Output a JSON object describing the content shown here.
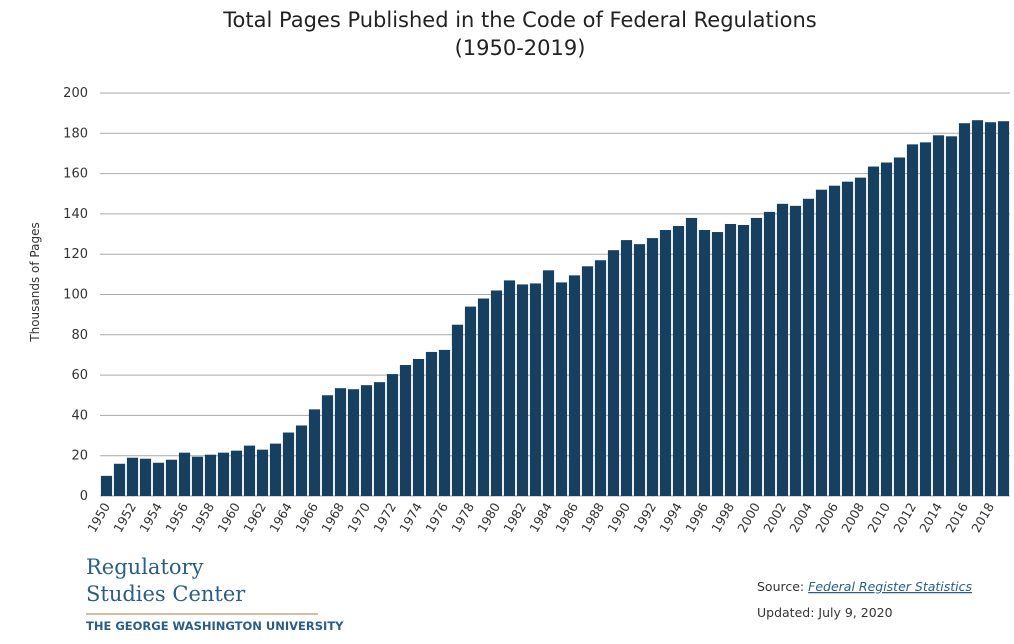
{
  "chart_data": {
    "type": "bar",
    "title": "Total Pages Published in the Code of Federal Regulations",
    "subtitle": "(1950-2019)",
    "y_label": "Thousands of Pages",
    "categories": [
      "1950",
      null,
      "1952",
      null,
      "1954",
      null,
      "1956",
      null,
      "1958",
      null,
      "1960",
      null,
      "1962",
      null,
      "1964",
      null,
      "1966",
      null,
      "1968",
      null,
      "1970",
      null,
      "1972",
      null,
      "1974",
      null,
      "1976",
      null,
      "1978",
      null,
      "1980",
      null,
      "1982",
      null,
      "1984",
      null,
      "1986",
      null,
      "1988",
      null,
      "1990",
      null,
      "1992",
      null,
      "1994",
      null,
      "1996",
      null,
      "1998",
      null,
      "2000",
      null,
      "2002",
      null,
      "2004",
      null,
      "2006",
      null,
      "2008",
      null,
      "2010",
      null,
      "2012",
      null,
      "2014",
      null,
      "2016",
      null,
      "2018",
      null
    ],
    "values": [
      10,
      16,
      19,
      18.5,
      16.5,
      18,
      21.5,
      19.5,
      20.5,
      21.5,
      22.5,
      25,
      23,
      26,
      31.5,
      35,
      43,
      50,
      53.5,
      53,
      55,
      56.5,
      60.5,
      65,
      68,
      71.5,
      72.5,
      85,
      94,
      98,
      102,
      107,
      105,
      105.5,
      112,
      106,
      109.5,
      114,
      117,
      122,
      127,
      125,
      128,
      132,
      134,
      138,
      132,
      131,
      135,
      134.5,
      138,
      141,
      145,
      144,
      147.5,
      152,
      154,
      156,
      158,
      163.5,
      165.5,
      168,
      174.5,
      175.5,
      179,
      178.5,
      185,
      186.5,
      185.5,
      186
    ],
    "color": "#173f5f",
    "ylim": [
      0,
      200
    ],
    "yticks": [
      0,
      20,
      40,
      60,
      80,
      100,
      120,
      140,
      160,
      180,
      200
    ],
    "grid": true
  },
  "footer": {
    "logo_line1": "Regulatory",
    "logo_line2": "Studies Center",
    "logo_line3": "THE GEORGE WASHINGTON UNIVERSITY",
    "source_label": "Source:",
    "source_link": "Federal Register Statistics",
    "updated": "Updated: July 9, 2020"
  }
}
